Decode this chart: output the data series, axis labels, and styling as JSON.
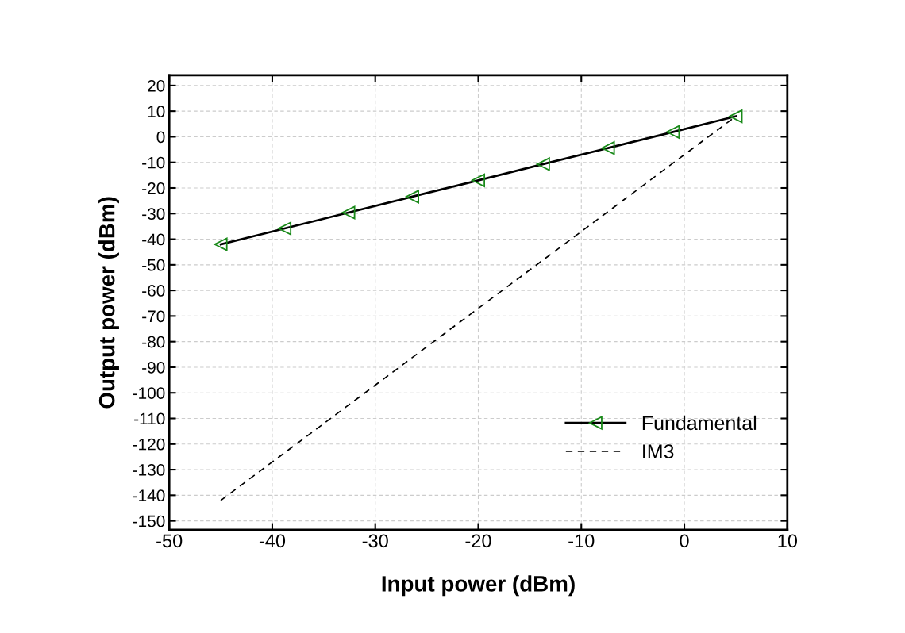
{
  "chart_data": {
    "type": "line",
    "xlabel": "Input power (dBm)",
    "ylabel": "Output power (dBm)",
    "xlim": [
      -50,
      10
    ],
    "xticks": [
      -50,
      -40,
      -30,
      -20,
      -10,
      0,
      10
    ],
    "ylim": [
      -153.5,
      24
    ],
    "yticks": [
      -150,
      -140,
      -130,
      -120,
      -110,
      -100,
      -90,
      -80,
      -70,
      -60,
      -50,
      -40,
      -30,
      -20,
      -10,
      0,
      10,
      20
    ],
    "grid": true,
    "legend": "right",
    "series": [
      {
        "name": "Fundamental",
        "color": "#000000",
        "marker": "triangle",
        "line_style": "solid",
        "x": [
          -45,
          -38.8,
          -32.6,
          -26.4,
          -20.0,
          -13.7,
          -7.4,
          -1.1,
          5
        ],
        "values": [
          -42,
          -35.8,
          -29.6,
          -23.4,
          -17.0,
          -10.7,
          -4.4,
          1.9,
          8
        ]
      },
      {
        "name": "IM3",
        "color": "#000000",
        "marker": "none",
        "line_style": "dashed",
        "x": [
          -45,
          5
        ],
        "values": [
          -142,
          8
        ]
      }
    ]
  }
}
